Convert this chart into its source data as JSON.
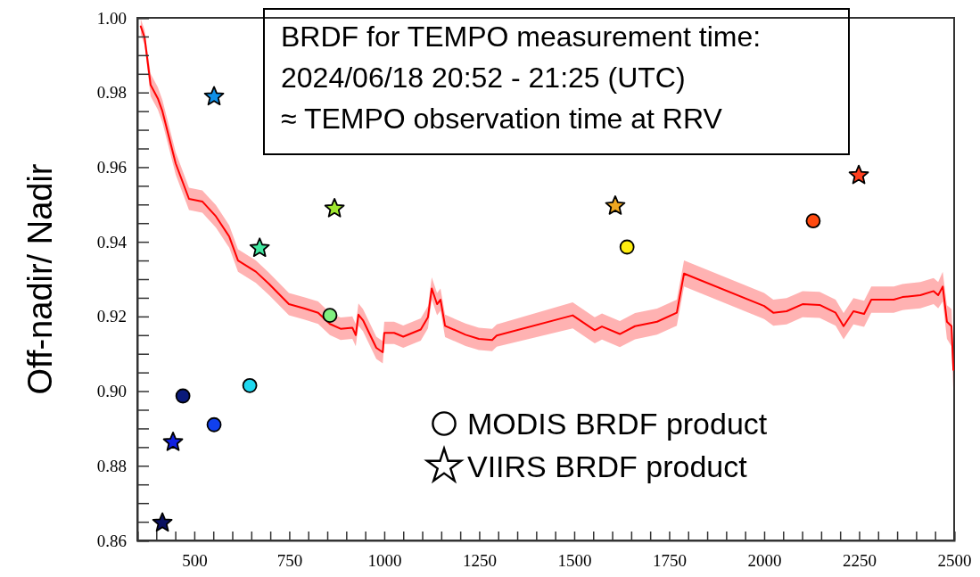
{
  "chart_data": {
    "type": "line",
    "ylabel": "Off-nadir/ Nadir",
    "annotations": [
      "BRDF for TEMPO measurement time:\n2024/06/18 20:52 - 21:25 (UTC)\n≈ TEMPO observation time at RRV"
    ],
    "xlim": [
      350,
      2500
    ],
    "ylim": [
      0.86,
      1.0
    ],
    "xticks": [
      {
        "value": 400,
        "label": null
      },
      {
        "value": 450,
        "label": null
      },
      500,
      {
        "value": 550,
        "label": null
      },
      {
        "value": 600,
        "label": null
      },
      {
        "value": 650,
        "label": null
      },
      {
        "value": 700,
        "label": null
      },
      750,
      {
        "value": 800,
        "label": null
      },
      {
        "value": 850,
        "label": null
      },
      {
        "value": 900,
        "label": null
      },
      {
        "value": 950,
        "label": null
      },
      1000,
      {
        "value": 1050,
        "label": null
      },
      {
        "value": 1100,
        "label": null
      },
      {
        "value": 1150,
        "label": null
      },
      {
        "value": 1200,
        "label": null
      },
      1250,
      {
        "value": 1300,
        "label": null
      },
      {
        "value": 1350,
        "label": null
      },
      {
        "value": 1400,
        "label": null
      },
      {
        "value": 1450,
        "label": null
      },
      1500,
      {
        "value": 1550,
        "label": null
      },
      {
        "value": 1600,
        "label": null
      },
      {
        "value": 1650,
        "label": null
      },
      {
        "value": 1700,
        "label": null
      },
      1750,
      {
        "value": 1800,
        "label": null
      },
      {
        "value": 1850,
        "label": null
      },
      {
        "value": 1900,
        "label": null
      },
      {
        "value": 1950,
        "label": null
      },
      2000,
      {
        "value": 2050,
        "label": null
      },
      {
        "value": 2100,
        "label": null
      },
      {
        "value": 2150,
        "label": null
      },
      {
        "value": 2200,
        "label": null
      },
      2250,
      {
        "value": 2300,
        "label": null
      },
      {
        "value": 2350,
        "label": null
      },
      {
        "value": 2400,
        "label": null
      },
      {
        "value": 2450,
        "label": null
      },
      2500
    ],
    "yticks": [
      0.86,
      {
        "value": 0.865,
        "label": null
      },
      {
        "value": 0.87,
        "label": null
      },
      {
        "value": 0.875,
        "label": null
      },
      0.88,
      {
        "value": 0.885,
        "label": null
      },
      {
        "value": 0.89,
        "label": null
      },
      {
        "value": 0.895,
        "label": null
      },
      {
        "value": 0.9,
        "label": "0.90"
      },
      {
        "value": 0.905,
        "label": null
      },
      {
        "value": 0.91,
        "label": null
      },
      {
        "value": 0.915,
        "label": null
      },
      0.92,
      {
        "value": 0.925,
        "label": null
      },
      {
        "value": 0.93,
        "label": null
      },
      {
        "value": 0.935,
        "label": null
      },
      0.94,
      {
        "value": 0.945,
        "label": null
      },
      {
        "value": 0.95,
        "label": null
      },
      {
        "value": 0.955,
        "label": null
      },
      0.96,
      {
        "value": 0.965,
        "label": null
      },
      {
        "value": 0.97,
        "label": null
      },
      {
        "value": 0.975,
        "label": null
      },
      0.98,
      {
        "value": 0.985,
        "label": null
      },
      {
        "value": 0.99,
        "label": null
      },
      {
        "value": 0.995,
        "label": null
      },
      {
        "value": 1.0,
        "label": "1.00"
      }
    ],
    "legend": "bottom right",
    "series": [
      {
        "color": "#ff0000",
        "line_style": "solid",
        "marker": "none",
        "x": [
          359,
          369,
          385,
          404,
          416,
          451,
          486,
          521,
          557,
          592,
          615,
          662,
          697,
          749,
          791,
          826,
          857,
          885,
          916,
          925,
          932,
          944,
          979,
          996,
          1000,
          1026,
          1050,
          1096,
          1115,
          1125,
          1139,
          1148,
          1160,
          1214,
          1249,
          1284,
          1296,
          1496,
          1554,
          1573,
          1620,
          1660,
          1718,
          1770,
          1789,
          2000,
          2024,
          2059,
          2101,
          2146,
          2188,
          2209,
          2235,
          2263,
          2282,
          2341,
          2364,
          2411,
          2446,
          2458,
          2470,
          2481,
          2493,
          2498
        ],
        "values": [
          0.9977,
          0.9948,
          0.982,
          0.9784,
          0.975,
          0.961,
          0.9515,
          0.9508,
          0.9468,
          0.9414,
          0.935,
          0.932,
          0.9287,
          0.9233,
          0.9221,
          0.921,
          0.918,
          0.9167,
          0.917,
          0.915,
          0.9205,
          0.919,
          0.9116,
          0.9104,
          0.9156,
          0.9156,
          0.9146,
          0.9165,
          0.9198,
          0.9275,
          0.9233,
          0.9245,
          0.9175,
          0.9151,
          0.914,
          0.9137,
          0.9149,
          0.9203,
          0.9163,
          0.9173,
          0.9153,
          0.9174,
          0.9186,
          0.921,
          0.9315,
          0.9228,
          0.921,
          0.9214,
          0.9233,
          0.9231,
          0.921,
          0.9174,
          0.9214,
          0.9207,
          0.9245,
          0.9245,
          0.9252,
          0.9257,
          0.9268,
          0.9257,
          0.928,
          0.9186,
          0.9174,
          0.9057
        ],
        "lower": [
          0.9957,
          0.9928,
          0.979,
          0.9754,
          0.972,
          0.958,
          0.9485,
          0.9478,
          0.9438,
          0.9384,
          0.932,
          0.929,
          0.9257,
          0.9203,
          0.9191,
          0.918,
          0.915,
          0.9137,
          0.914,
          0.912,
          0.9175,
          0.916,
          0.9086,
          0.9074,
          0.9126,
          0.9126,
          0.9116,
          0.9135,
          0.9168,
          0.9245,
          0.9203,
          0.9215,
          0.9145,
          0.9121,
          0.911,
          0.9107,
          0.9119,
          0.9168,
          0.9128,
          0.9138,
          0.9118,
          0.9139,
          0.9151,
          0.9175,
          0.928,
          0.9193,
          0.9175,
          0.9179,
          0.9198,
          0.9196,
          0.9175,
          0.9139,
          0.9179,
          0.9172,
          0.921,
          0.921,
          0.9217,
          0.9222,
          0.9233,
          0.9222,
          0.924,
          0.914,
          0.912,
          0.9
        ],
        "upper": [
          0.9997,
          0.9968,
          0.985,
          0.9814,
          0.978,
          0.964,
          0.9545,
          0.9538,
          0.9498,
          0.9444,
          0.938,
          0.935,
          0.9317,
          0.9263,
          0.9251,
          0.924,
          0.921,
          0.9197,
          0.92,
          0.918,
          0.9235,
          0.922,
          0.9146,
          0.9134,
          0.9186,
          0.9186,
          0.9176,
          0.9195,
          0.9228,
          0.9305,
          0.9263,
          0.9275,
          0.9205,
          0.9181,
          0.917,
          0.9167,
          0.9179,
          0.9238,
          0.9198,
          0.9208,
          0.9188,
          0.9209,
          0.9221,
          0.9245,
          0.935,
          0.9263,
          0.9245,
          0.9249,
          0.9268,
          0.9266,
          0.9245,
          0.9209,
          0.9249,
          0.9242,
          0.928,
          0.928,
          0.9287,
          0.9292,
          0.9303,
          0.9292,
          0.932,
          0.923,
          0.922,
          0.911
        ]
      },
      {
        "type": "scatter",
        "name": "MODIS BRDF product",
        "marker": "circle",
        "x": [
          470,
          552,
          646,
          857,
          1639,
          2129
        ],
        "values": [
          0.8987,
          0.891,
          0.9015,
          0.9203,
          0.9386,
          0.9456
        ],
        "colors": [
          "#0a1a7a",
          "#1040ee",
          "#20d8f0",
          "#80f080",
          "#ffee10",
          "#ff4a10"
        ]
      },
      {
        "type": "scatter",
        "name": "VIIRS BRDF product",
        "marker": "star",
        "x": [
          416,
          444,
          552,
          672,
          869,
          1608,
          2249
        ],
        "values": [
          0.8647,
          0.8863,
          0.9789,
          0.9383,
          0.9489,
          0.9496,
          0.9578
        ],
        "colors": [
          "#0a1060",
          "#1020e0",
          "#1090e8",
          "#40e8a0",
          "#a0e830",
          "#f0a820",
          "#ff4020"
        ]
      }
    ]
  }
}
